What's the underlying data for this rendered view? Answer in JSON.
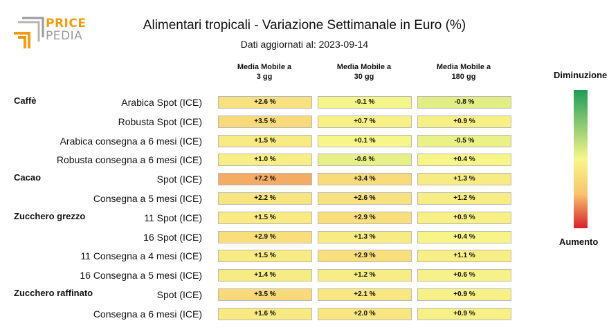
{
  "logo": {
    "word1": "PRICE",
    "word2": "PEDIA"
  },
  "chart_data": {
    "type": "table",
    "title": "Alimentari tropicali - Variazione Settimanale in Euro (%)",
    "subtitle": "Dati aggiornati al: 2023-09-14",
    "columns": [
      "Media Mobile a\n3 gg",
      "Media Mobile a\n30 gg",
      "Media Mobile a\n180 gg"
    ],
    "groups": [
      {
        "name": "Caffè",
        "rows": [
          {
            "label": "Arabica Spot (ICE)",
            "values": [
              2.6,
              -0.1,
              -0.8
            ],
            "texts": [
              "+2.6 %",
              "-0.1 %",
              "-0.8 %"
            ]
          },
          {
            "label": "Robusta Spot (ICE)",
            "values": [
              3.5,
              0.7,
              0.9
            ],
            "texts": [
              "+3.5 %",
              "+0.7 %",
              "+0.9 %"
            ]
          },
          {
            "label": "Arabica consegna a 6 mesi (ICE)",
            "values": [
              1.5,
              0.1,
              -0.5
            ],
            "texts": [
              "+1.5 %",
              "+0.1 %",
              "-0.5 %"
            ]
          },
          {
            "label": "Robusta consegna a 6 mesi (ICE)",
            "values": [
              1.0,
              -0.6,
              0.4
            ],
            "texts": [
              "+1.0 %",
              "-0.6 %",
              "+0.4 %"
            ]
          }
        ]
      },
      {
        "name": "Cacao",
        "rows": [
          {
            "label": "Spot (ICE)",
            "values": [
              7.2,
              3.4,
              1.3
            ],
            "texts": [
              "+7.2 %",
              "+3.4 %",
              "+1.3 %"
            ]
          },
          {
            "label": "Consegna a 5 mesi (ICE)",
            "values": [
              2.2,
              2.6,
              1.2
            ],
            "texts": [
              "+2.2 %",
              "+2.6 %",
              "+1.2 %"
            ]
          }
        ]
      },
      {
        "name": "Zucchero grezzo",
        "rows": [
          {
            "label": "11 Spot (ICE)",
            "values": [
              1.5,
              2.9,
              0.9
            ],
            "texts": [
              "+1.5 %",
              "+2.9 %",
              "+0.9 %"
            ]
          },
          {
            "label": "16 Spot (ICE)",
            "values": [
              2.9,
              1.3,
              0.4
            ],
            "texts": [
              "+2.9 %",
              "+1.3 %",
              "+0.4 %"
            ]
          },
          {
            "label": "11 Consegna a 4 mesi (ICE)",
            "values": [
              1.5,
              2.9,
              1.1
            ],
            "texts": [
              "+1.5 %",
              "+2.9 %",
              "+1.1 %"
            ]
          },
          {
            "label": "16 Consegna a 5 mesi (ICE)",
            "values": [
              1.4,
              1.2,
              0.6
            ],
            "texts": [
              "+1.4 %",
              "+1.2 %",
              "+0.6 %"
            ]
          }
        ]
      },
      {
        "name": "Zucchero raffinato",
        "rows": [
          {
            "label": "Spot (ICE)",
            "values": [
              3.5,
              2.1,
              0.9
            ],
            "texts": [
              "+3.5 %",
              "+2.1 %",
              "+0.9 %"
            ]
          },
          {
            "label": "Consegna a 6 mesi (ICE)",
            "values": [
              1.6,
              2.0,
              0.9
            ],
            "texts": [
              "+1.6 %",
              "+2.0 %",
              "+0.9 %"
            ]
          }
        ]
      }
    ],
    "legend": {
      "top_label": "Diminuzione",
      "bottom_label": "Aumento"
    },
    "colors": {
      "decrease_strong": "#1e9c5a",
      "neutral": "#f7f78a",
      "increase_mid": "#f9c56e",
      "increase_strong": "#d8202b",
      "logo_orange": "#f39c12",
      "logo_grey": "#9a9a9a"
    }
  }
}
